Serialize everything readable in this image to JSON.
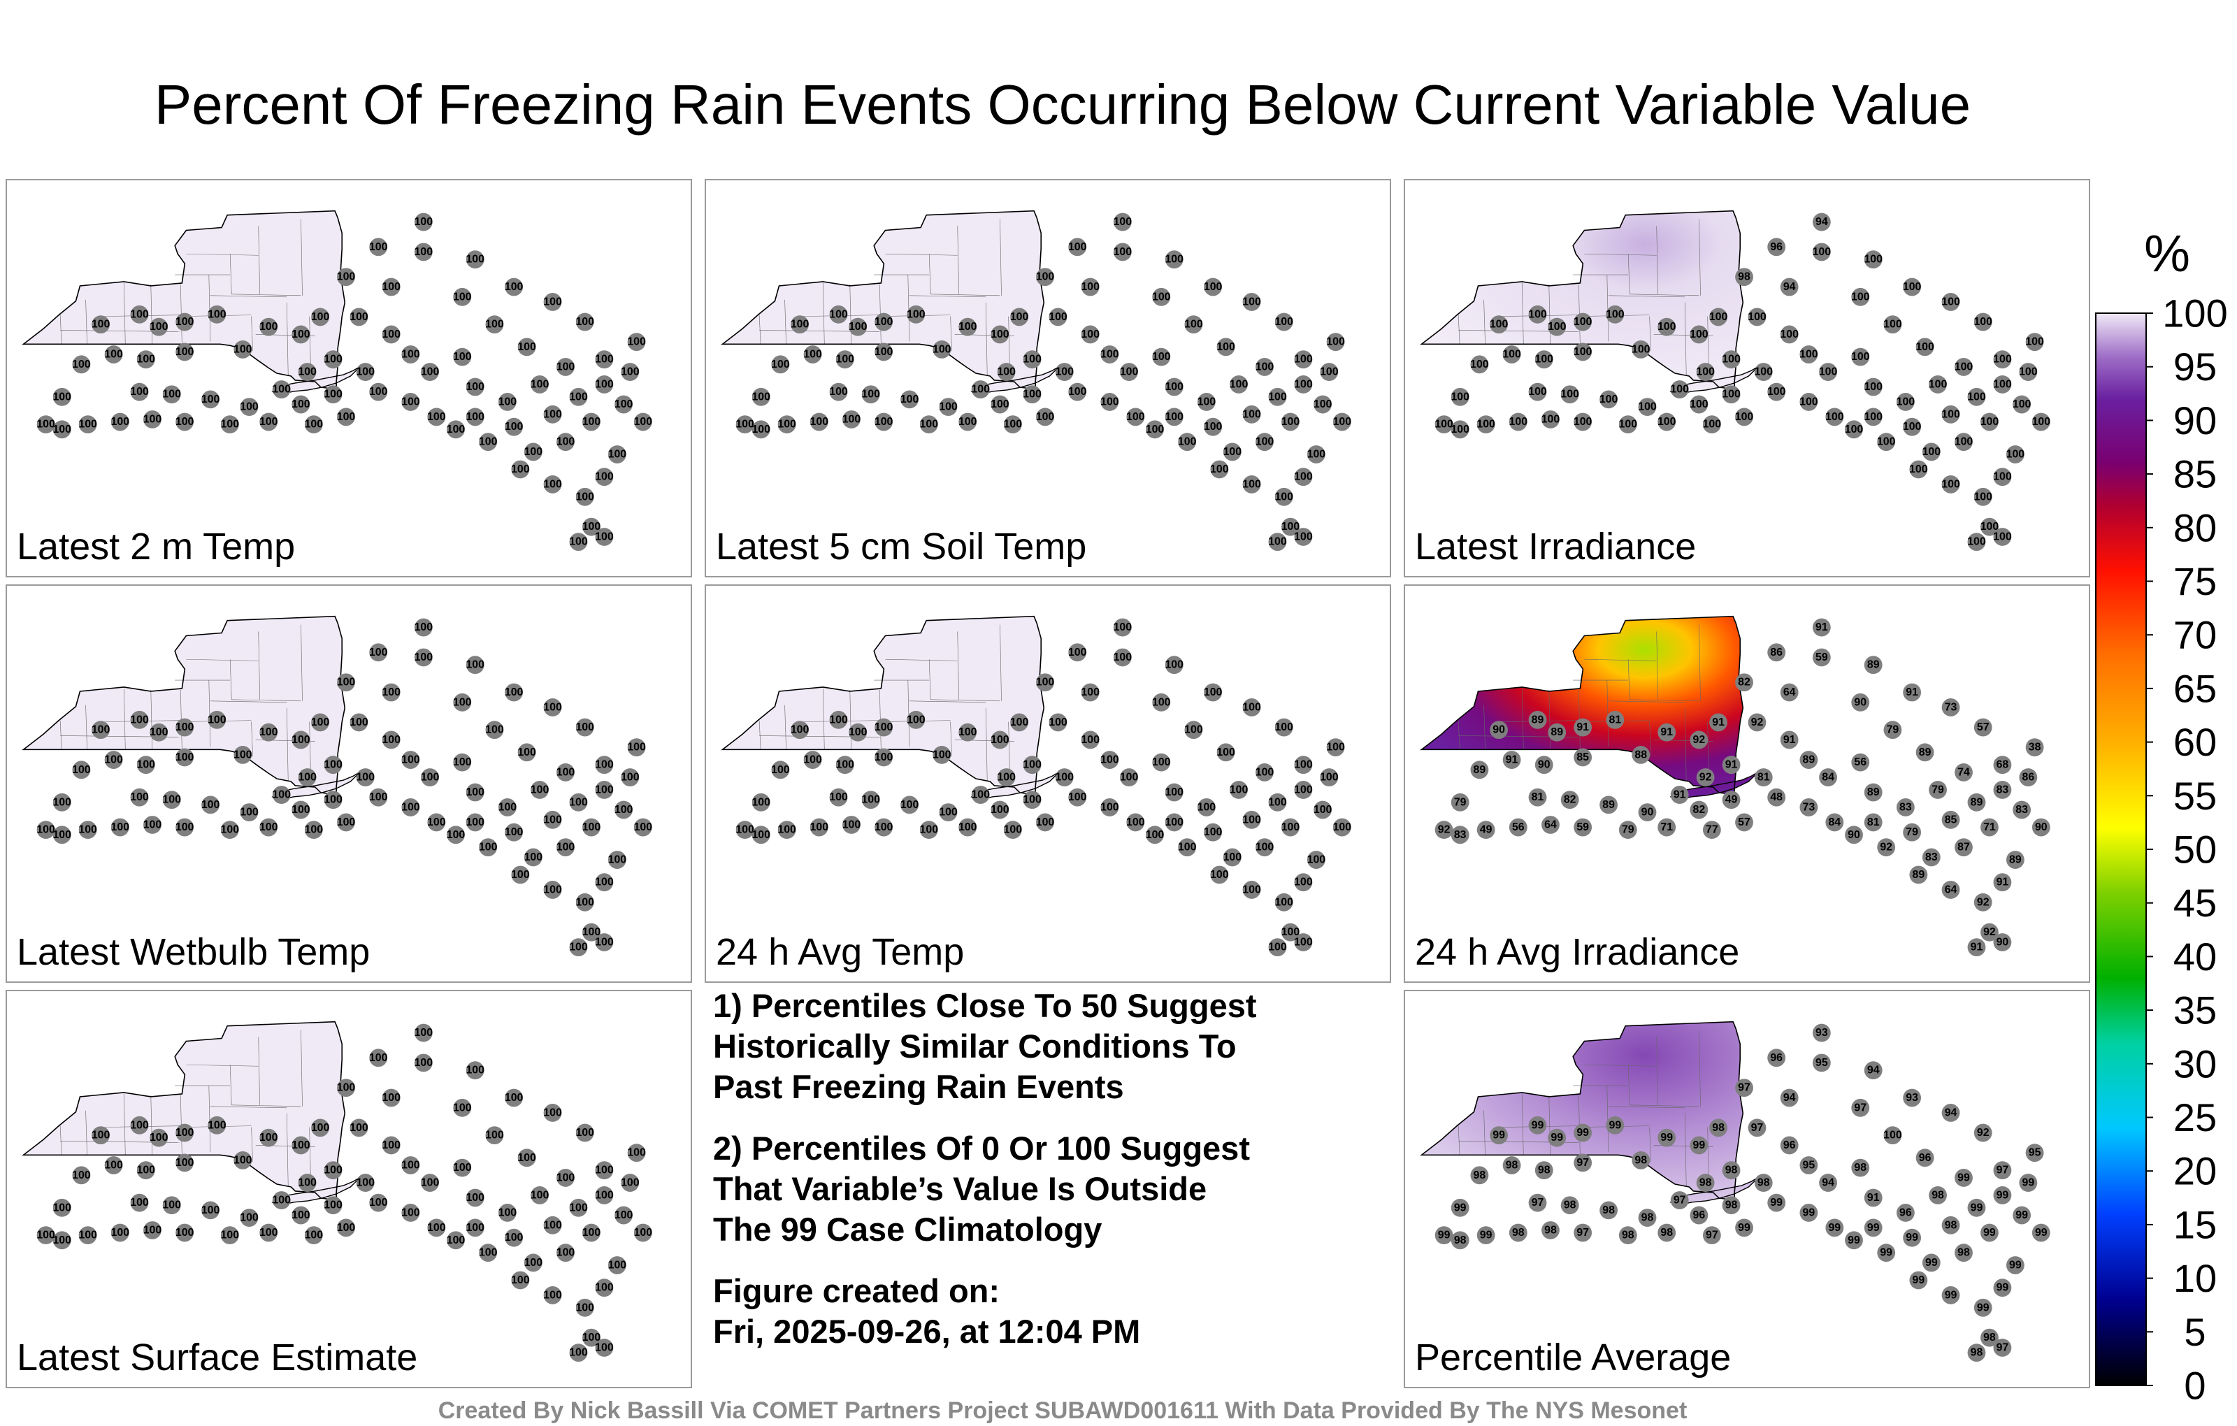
{
  "title": "Percent Of Freezing Rain Events Occurring Below Current Variable Value",
  "colorbar": {
    "unit": "%",
    "ticks": [
      0,
      5,
      10,
      15,
      20,
      25,
      30,
      35,
      40,
      45,
      50,
      55,
      60,
      65,
      70,
      75,
      80,
      85,
      90,
      95,
      100
    ],
    "range": [
      0,
      100
    ]
  },
  "panels": [
    {
      "id": "p1",
      "label": "Latest 2 m Temp",
      "value": 100
    },
    {
      "id": "p2",
      "label": "Latest 5 cm Soil Temp",
      "value": 100
    },
    {
      "id": "p3",
      "label": "Latest Irradiance",
      "value": 100
    },
    {
      "id": "p4",
      "label": "Latest Wetbulb Temp",
      "value": 100
    },
    {
      "id": "p5",
      "label": "24 h Avg Temp",
      "value": 100
    },
    {
      "id": "p6",
      "label": "24 h Avg Irradiance"
    },
    {
      "id": "p7",
      "label": "Latest Surface Estimate",
      "value": 100
    },
    {
      "id": "p9",
      "label": "Percentile Average"
    }
  ],
  "irradiance_latest_values": [
    94,
    96,
    98,
    94
  ],
  "irradiance_24h_values": [
    92,
    90,
    89,
    89,
    91,
    81,
    91,
    88,
    85,
    90,
    91,
    89,
    79,
    81,
    82,
    89,
    90,
    91,
    92,
    91,
    92,
    91,
    92,
    91,
    89,
    84,
    89,
    83,
    79,
    74,
    68,
    38,
    57,
    73,
    91,
    89,
    91,
    86,
    82,
    64,
    59,
    90,
    79,
    89,
    56,
    48,
    49,
    57,
    77,
    71,
    79,
    59,
    64,
    56,
    49,
    83,
    82,
    81,
    73,
    84,
    81,
    79,
    85,
    89,
    83,
    86,
    71,
    87,
    83,
    89,
    64,
    92,
    91,
    89,
    90,
    83,
    92,
    90,
    92,
    90,
    91,
    91,
    92,
    91,
    90,
    90
  ],
  "average_values": [
    99,
    99,
    99,
    99,
    99,
    99,
    99,
    98,
    97,
    98,
    98,
    98,
    99,
    97,
    98,
    98,
    98,
    97,
    98,
    98,
    99,
    98,
    97,
    96,
    95,
    94,
    91,
    96,
    98,
    99,
    97,
    95,
    92,
    94,
    93,
    94,
    93,
    96,
    97,
    94,
    95,
    97,
    100,
    96,
    98,
    99,
    98,
    99,
    97,
    98,
    98,
    97,
    98,
    98,
    99,
    98,
    96,
    98,
    99,
    99,
    99,
    99,
    98,
    99,
    99,
    99,
    99,
    98,
    99,
    99,
    99
  ],
  "notes": [
    "1) Percentiles Close To 50 Suggest\nHistorically Similar Conditions To\nPast Freezing Rain Events",
    "2) Percentiles Of 0 Or 100 Suggest\nThat Variable’s Value Is Outside\nThe 99 Case Climatology",
    "Figure created on:\nFri, 2025-09-26, at 12:04 PM"
  ],
  "credit": "Created By Nick Bassill Via COMET Partners Project SUBAWD001611 With Data Provided By The NYS Mesonet"
}
